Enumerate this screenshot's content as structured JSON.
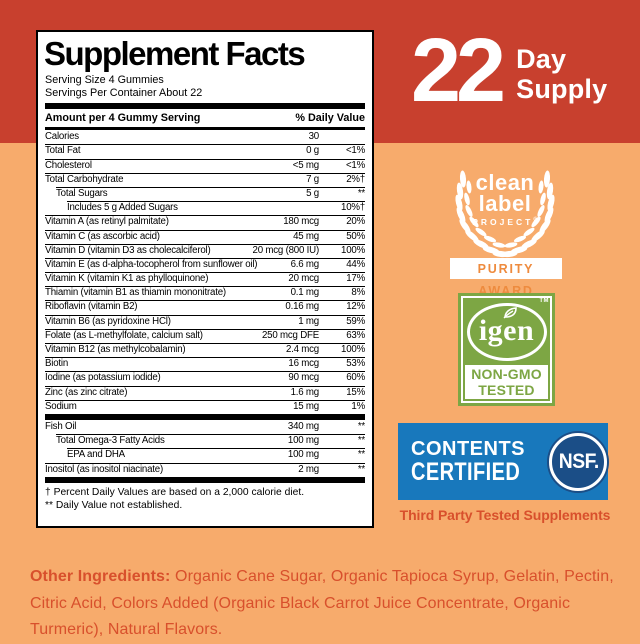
{
  "banner": {
    "count": "22",
    "line1": "Day",
    "line2": "Supply"
  },
  "panel": {
    "title": "Supplement Facts",
    "serving_size": "Serving Size 4 Gummies",
    "servings_per_container": "Servings Per Container About 22",
    "col_amount": "Amount per 4 Gummy Serving",
    "col_dv": "% Daily Value",
    "rows": [
      {
        "name": "Calories",
        "amount": "30",
        "dv": "",
        "indent": 0
      },
      {
        "name": "Total Fat",
        "amount": "0 g",
        "dv": "<1%",
        "indent": 0
      },
      {
        "name": "Cholesterol",
        "amount": "<5 mg",
        "dv": "<1%",
        "indent": 0
      },
      {
        "name": "Total Carbohydrate",
        "amount": "7 g",
        "dv": "2%†",
        "indent": 0
      },
      {
        "name": "Total Sugars",
        "amount": "5 g",
        "dv": "**",
        "indent": 1
      },
      {
        "name": "Includes 5 g Added Sugars",
        "amount": "",
        "dv": "10%†",
        "indent": 2
      },
      {
        "name": "Vitamin A (as retinyl palmitate)",
        "amount": "180 mcg",
        "dv": "20%",
        "indent": 0
      },
      {
        "name": "Vitamin C (as ascorbic acid)",
        "amount": "45 mg",
        "dv": "50%",
        "indent": 0
      },
      {
        "name": "Vitamin D (vitamin D3 as cholecalciferol)",
        "amount": "20 mcg (800 IU)",
        "dv": "100%",
        "indent": 0
      },
      {
        "name": "Vitamin E (as d-alpha-tocopherol from sunflower oil)",
        "amount": "6.6 mg",
        "dv": "44%",
        "indent": 0
      },
      {
        "name": "Vitamin K (vitamin K1 as phylloquinone)",
        "amount": "20 mcg",
        "dv": "17%",
        "indent": 0
      },
      {
        "name": "Thiamin (vitamin B1 as thiamin mononitrate)",
        "amount": "0.1 mg",
        "dv": "8%",
        "indent": 0
      },
      {
        "name": "Riboflavin (vitamin B2)",
        "amount": "0.16 mg",
        "dv": "12%",
        "indent": 0
      },
      {
        "name": "Vitamin B6 (as pyridoxine HCl)",
        "amount": "1 mg",
        "dv": "59%",
        "indent": 0
      },
      {
        "name": "Folate (as L-methylfolate, calcium salt)",
        "amount": "250 mcg DFE",
        "dv": "63%",
        "indent": 0
      },
      {
        "name": "Vitamin B12 (as methylcobalamin)",
        "amount": "2.4 mcg",
        "dv": "100%",
        "indent": 0
      },
      {
        "name": "Biotin",
        "amount": "16 mcg",
        "dv": "53%",
        "indent": 0
      },
      {
        "name": "Iodine (as potassium iodide)",
        "amount": "90 mcg",
        "dv": "60%",
        "indent": 0
      },
      {
        "name": "Zinc (as zinc citrate)",
        "amount": "1.6 mg",
        "dv": "15%",
        "indent": 0
      },
      {
        "name": "Sodium",
        "amount": "15 mg",
        "dv": "1%",
        "indent": 0
      },
      {
        "name": "Fish Oil",
        "amount": "340 mg",
        "dv": "**",
        "indent": 0,
        "bar_before": true
      },
      {
        "name": "Total Omega-3 Fatty Acids",
        "amount": "100 mg",
        "dv": "**",
        "indent": 1
      },
      {
        "name": "EPA and DHA",
        "amount": "100 mg",
        "dv": "**",
        "indent": 2
      },
      {
        "name": "Inositol (as inositol niacinate)",
        "amount": "2 mg",
        "dv": "**",
        "indent": 0
      }
    ],
    "footnotes": [
      "† Percent Daily Values are based on a 2,000 calorie diet.",
      "** Daily Value not established."
    ]
  },
  "badges": {
    "clean_label": {
      "line1": "clean",
      "line2": "label",
      "line3": "PROJECT",
      "reg": "®",
      "award": "PURITY AWARD"
    },
    "igen": {
      "word": "igen",
      "tm": "TM",
      "line1": "NON-GMO",
      "line2": "TESTED"
    },
    "nsf": {
      "line1": "CONTENTS",
      "line2": "CERTIFIED",
      "logo": "NSF.",
      "tagline": "Third Party Tested Supplements"
    }
  },
  "other_ingredients": {
    "label": "Other Ingredients:",
    "text": " Organic Cane Sugar, Organic Tapioca Syrup, Gelatin, Pectin, Citric Acid, Colors Added (Organic Black Carrot Juice Concentrate, Organic Turmeric), Natural Flavors."
  },
  "colors": {
    "banner_red": "#C8402E",
    "background_orange": "#F7AB6C",
    "ingredient_text": "#D8502C",
    "purity_award_text": "#EE8B3E",
    "igen_green": "#7DA644",
    "nsf_blue": "#1878BC",
    "nsf_navy": "#1B4E87"
  }
}
